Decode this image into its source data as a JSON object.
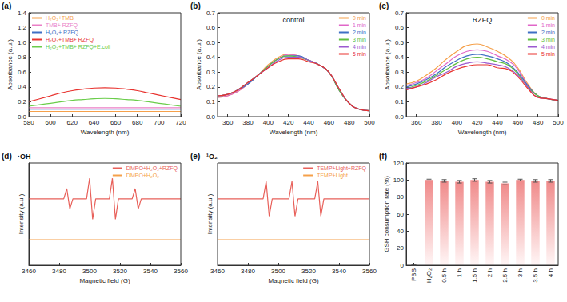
{
  "chart_data": [
    {
      "type": "line",
      "annotations": [
        "(a)"
      ],
      "xlabel": "Wavelength (nm)",
      "ylabel": "Absorbance (a.u.)",
      "x": [
        580,
        590,
        600,
        610,
        620,
        630,
        640,
        650,
        660,
        670,
        680,
        690,
        700,
        710,
        720
      ],
      "xlim": [
        580,
        720
      ],
      "xticks": [
        580,
        600,
        620,
        640,
        660,
        680,
        700,
        720
      ],
      "ylim": [
        0,
        1.4
      ],
      "yticks": [
        {
          "value": 0,
          "label": "0.0"
        },
        0.2,
        0.4,
        0.6,
        0.8,
        {
          "value": 1,
          "label": "1.0"
        },
        1.2,
        1.4
      ],
      "grid": false,
      "legend": "top-left",
      "series": [
        {
          "name": "H₂O₂+TMB",
          "color": "#f5a04a",
          "values": [
            0.07,
            0.07,
            0.07,
            0.07,
            0.07,
            0.07,
            0.07,
            0.07,
            0.07,
            0.07,
            0.07,
            0.07,
            0.07,
            0.07,
            0.07
          ]
        },
        {
          "name": "TMB+ RZFQ",
          "color": "#ea7fc6",
          "values": [
            0.12,
            0.12,
            0.12,
            0.12,
            0.12,
            0.12,
            0.12,
            0.12,
            0.12,
            0.12,
            0.12,
            0.12,
            0.12,
            0.12,
            0.12
          ]
        },
        {
          "name": "H₂O₂+ RZFQ",
          "color": "#3f6fc4",
          "values": [
            0.1,
            0.1,
            0.1,
            0.1,
            0.1,
            0.1,
            0.1,
            0.1,
            0.1,
            0.1,
            0.1,
            0.1,
            0.1,
            0.1,
            0.1
          ]
        },
        {
          "name": "H₂O₂+TMB+ RZFQ",
          "color": "#e8332f",
          "values": [
            0.2,
            0.24,
            0.28,
            0.32,
            0.35,
            0.37,
            0.385,
            0.39,
            0.385,
            0.37,
            0.35,
            0.32,
            0.29,
            0.26,
            0.23
          ]
        },
        {
          "name": "H₂O₂+TMB+ RZFQ+E.coli",
          "color": "#6acd4a",
          "values": [
            0.14,
            0.16,
            0.18,
            0.2,
            0.22,
            0.23,
            0.24,
            0.245,
            0.24,
            0.23,
            0.22,
            0.2,
            0.18,
            0.16,
            0.14
          ]
        }
      ]
    },
    {
      "type": "line",
      "title": "control",
      "annotations": [
        "(b)"
      ],
      "xlabel": "Wavelength (nm)",
      "ylabel": "Absorbance (a.u.)",
      "x": [
        350,
        360,
        370,
        380,
        390,
        400,
        410,
        420,
        430,
        440,
        450,
        460,
        470,
        480,
        490,
        500
      ],
      "xlim": [
        350,
        500
      ],
      "xticks": [
        360,
        380,
        400,
        420,
        440,
        460,
        480,
        500
      ],
      "ylim": [
        0,
        0.7
      ],
      "yticks": [
        {
          "value": 0,
          "label": "0.0"
        },
        0.1,
        0.2,
        0.3,
        0.4,
        0.5,
        0.6,
        0.7
      ],
      "grid": false,
      "legend": "top-right",
      "series": [
        {
          "name": "0 min",
          "color": "#f5a04a",
          "values": [
            0.13,
            0.14,
            0.17,
            0.22,
            0.28,
            0.35,
            0.4,
            0.42,
            0.41,
            0.38,
            0.35,
            0.3,
            0.18,
            0.09,
            0.05,
            0.04
          ]
        },
        {
          "name": "1 min",
          "color": "#e066c8",
          "values": [
            0.13,
            0.14,
            0.17,
            0.22,
            0.28,
            0.34,
            0.39,
            0.42,
            0.41,
            0.38,
            0.35,
            0.3,
            0.18,
            0.09,
            0.05,
            0.04
          ]
        },
        {
          "name": "2 min",
          "color": "#3f6fc4",
          "values": [
            0.14,
            0.15,
            0.18,
            0.22,
            0.28,
            0.34,
            0.39,
            0.41,
            0.41,
            0.38,
            0.35,
            0.3,
            0.18,
            0.09,
            0.05,
            0.04
          ]
        },
        {
          "name": "3 min",
          "color": "#5fbf3f",
          "values": [
            0.14,
            0.15,
            0.18,
            0.23,
            0.28,
            0.34,
            0.39,
            0.41,
            0.4,
            0.38,
            0.35,
            0.3,
            0.18,
            0.09,
            0.05,
            0.04
          ]
        },
        {
          "name": "4 min",
          "color": "#9b59d0",
          "values": [
            0.14,
            0.15,
            0.18,
            0.23,
            0.28,
            0.33,
            0.38,
            0.4,
            0.4,
            0.38,
            0.35,
            0.3,
            0.19,
            0.09,
            0.05,
            0.04
          ]
        },
        {
          "name": "5 min",
          "color": "#e8332f",
          "values": [
            0.14,
            0.15,
            0.18,
            0.23,
            0.28,
            0.33,
            0.37,
            0.39,
            0.39,
            0.37,
            0.35,
            0.3,
            0.19,
            0.09,
            0.05,
            0.04
          ]
        }
      ]
    },
    {
      "type": "line",
      "title": "RZFQ",
      "annotations": [
        "(c)"
      ],
      "xlabel": "Wavelength (nm)",
      "ylabel": "Absorbance (a.u.)",
      "x": [
        350,
        360,
        370,
        380,
        390,
        400,
        410,
        420,
        430,
        440,
        450,
        460,
        470,
        480,
        490,
        500
      ],
      "xlim": [
        350,
        500
      ],
      "xticks": [
        360,
        380,
        400,
        420,
        440,
        460,
        480,
        500
      ],
      "ylim": [
        0,
        0.7
      ],
      "yticks": [
        {
          "value": 0,
          "label": "0.0"
        },
        0.1,
        0.2,
        0.3,
        0.4,
        0.5,
        0.6,
        0.7
      ],
      "grid": false,
      "legend": "top-right",
      "series": [
        {
          "name": "0 min",
          "color": "#f5a04a",
          "values": [
            0.22,
            0.24,
            0.28,
            0.33,
            0.39,
            0.44,
            0.48,
            0.49,
            0.47,
            0.44,
            0.4,
            0.33,
            0.22,
            0.14,
            0.12,
            0.11
          ]
        },
        {
          "name": "1 min",
          "color": "#e066c8",
          "values": [
            0.21,
            0.23,
            0.26,
            0.31,
            0.36,
            0.41,
            0.44,
            0.45,
            0.44,
            0.41,
            0.38,
            0.32,
            0.21,
            0.14,
            0.12,
            0.11
          ]
        },
        {
          "name": "2 min",
          "color": "#3f6fc4",
          "values": [
            0.2,
            0.22,
            0.25,
            0.29,
            0.34,
            0.38,
            0.41,
            0.42,
            0.41,
            0.39,
            0.36,
            0.3,
            0.21,
            0.14,
            0.12,
            0.11
          ]
        },
        {
          "name": "3 min",
          "color": "#5fbf3f",
          "values": [
            0.19,
            0.21,
            0.24,
            0.28,
            0.32,
            0.36,
            0.39,
            0.4,
            0.39,
            0.37,
            0.35,
            0.29,
            0.2,
            0.14,
            0.12,
            0.11
          ]
        },
        {
          "name": "4 min",
          "color": "#9b59d0",
          "values": [
            0.19,
            0.2,
            0.23,
            0.27,
            0.3,
            0.34,
            0.36,
            0.37,
            0.36,
            0.35,
            0.33,
            0.28,
            0.2,
            0.13,
            0.12,
            0.11
          ]
        },
        {
          "name": "5 min",
          "color": "#e8332f",
          "values": [
            0.18,
            0.2,
            0.22,
            0.25,
            0.29,
            0.32,
            0.34,
            0.35,
            0.35,
            0.33,
            0.32,
            0.27,
            0.19,
            0.13,
            0.12,
            0.11
          ]
        }
      ]
    },
    {
      "type": "line",
      "title": "·OH",
      "annotations": [
        "(d)"
      ],
      "xlabel": "Magnetic field (G)",
      "ylabel": "Intensity (a.u.)",
      "x": [
        3460,
        3483,
        3485,
        3487,
        3489,
        3498,
        3500,
        3502,
        3504,
        3513,
        3515,
        3517,
        3519,
        3528,
        3530,
        3532,
        3534,
        3560
      ],
      "xlim": [
        3460,
        3560
      ],
      "xticks": [
        3460,
        3480,
        3500,
        3520,
        3540,
        3560
      ],
      "ylim": [
        0,
        10
      ],
      "tick_labels": "x",
      "grid": false,
      "legend": "top-right",
      "series": [
        {
          "name": "DMPO+H₂O₂+RZFQ",
          "color": "#e8605a",
          "values": [
            6.5,
            6.5,
            7.5,
            5.5,
            6.5,
            6.5,
            8.5,
            4.5,
            6.5,
            6.5,
            8.5,
            4.5,
            6.5,
            6.5,
            7.5,
            5.5,
            6.5,
            6.5
          ]
        },
        {
          "name": "DMPO+H₂O₂",
          "color": "#f5a04a",
          "values": [
            2.5,
            2.5,
            2.5,
            2.5,
            2.5,
            2.5,
            2.5,
            2.5,
            2.5,
            2.5,
            2.5,
            2.5,
            2.5,
            2.5,
            2.5,
            2.5,
            2.5,
            2.5
          ]
        }
      ]
    },
    {
      "type": "line",
      "title": "¹O₂",
      "annotations": [
        "(e)"
      ],
      "xlabel": "Magnetic field (G)",
      "ylabel": "Intensity (a.u.)",
      "x": [
        3460,
        3490,
        3492,
        3494,
        3496,
        3507,
        3509,
        3511,
        3513,
        3524,
        3526,
        3528,
        3530,
        3560
      ],
      "xlim": [
        3460,
        3560
      ],
      "xticks": [
        3460,
        3480,
        3500,
        3520,
        3540,
        3560
      ],
      "ylim": [
        0,
        10
      ],
      "tick_labels": "x",
      "grid": false,
      "legend": "top-right",
      "series": [
        {
          "name": "TEMP+Light+RZFQ",
          "color": "#e8605a",
          "values": [
            6.5,
            6.5,
            8.2,
            4.8,
            6.5,
            6.5,
            8.2,
            4.8,
            6.5,
            6.5,
            8.2,
            4.8,
            6.5,
            6.5
          ]
        },
        {
          "name": "TEMP+Light",
          "color": "#f5a04a",
          "values": [
            2.5,
            2.5,
            2.5,
            2.5,
            2.5,
            2.5,
            2.5,
            2.5,
            2.5,
            2.5,
            2.5,
            2.5,
            2.5,
            2.5
          ]
        }
      ]
    },
    {
      "type": "bar",
      "annotations": [
        "(f)"
      ],
      "ylabel": "GSH consumption rate (%)",
      "categories": [
        "PBS",
        "H₂O₂",
        "0.5 h",
        "1 h",
        "1.5 h",
        "2 h",
        "2.5 h",
        "3 h",
        "3.5 h",
        "4 h"
      ],
      "values": [
        0,
        100,
        99,
        98,
        100,
        98,
        96,
        100,
        99,
        99
      ],
      "error": [
        0,
        1,
        1.5,
        1.5,
        1.5,
        1.5,
        1.5,
        1,
        1.5,
        1.5
      ],
      "color": "#f08a8a",
      "ylim": [
        0,
        120
      ],
      "yticks": [
        0,
        20,
        40,
        60,
        80,
        100,
        120
      ],
      "grid": false
    }
  ]
}
